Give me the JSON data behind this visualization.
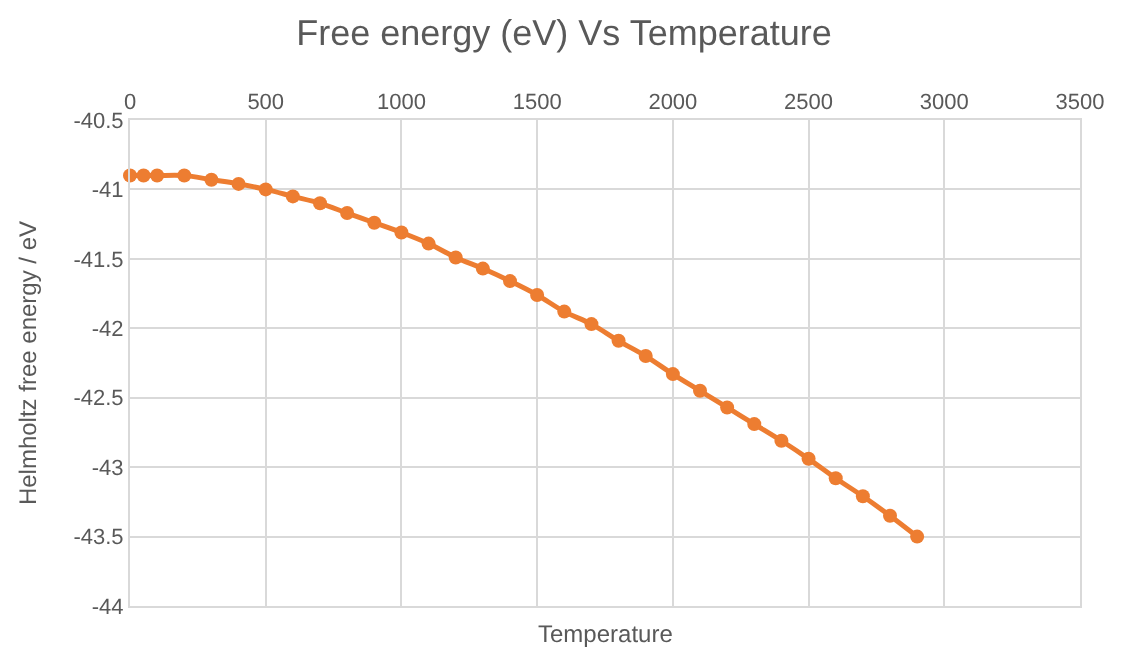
{
  "chart_data": {
    "type": "line",
    "title": "Free energy (eV) Vs Temperature",
    "xlabel": "Temperature",
    "ylabel": "Helmholtz free energy / eV",
    "x": [
      0,
      50,
      100,
      200,
      300,
      400,
      500,
      600,
      700,
      800,
      900,
      1000,
      1100,
      1200,
      1300,
      1400,
      1500,
      1600,
      1700,
      1800,
      1900,
      2000,
      2100,
      2200,
      2300,
      2400,
      2500,
      2600,
      2700,
      2800,
      2900
    ],
    "series": [
      {
        "color": "#ed7d31",
        "values": [
          -40.9,
          -40.9,
          -40.9,
          -40.9,
          -40.93,
          -40.96,
          -41.0,
          -41.05,
          -41.1,
          -41.17,
          -41.24,
          -41.31,
          -41.39,
          -41.49,
          -41.57,
          -41.66,
          -41.76,
          -41.88,
          -41.97,
          -42.09,
          -42.2,
          -42.33,
          -42.45,
          -42.57,
          -42.69,
          -42.81,
          -42.94,
          -43.08,
          -43.21,
          -43.35,
          -43.5
        ]
      }
    ],
    "xlim": [
      0,
      3500
    ],
    "xticks": [
      0,
      500,
      1000,
      1500,
      2000,
      2500,
      3000,
      3500
    ],
    "ylim": [
      -44,
      -40.5
    ],
    "yticks": [
      -40.5,
      -41,
      -41.5,
      -42,
      -42.5,
      -43,
      -43.5,
      -44
    ],
    "grid": true,
    "legend": false,
    "marker": "circle",
    "line_style": "solid"
  }
}
